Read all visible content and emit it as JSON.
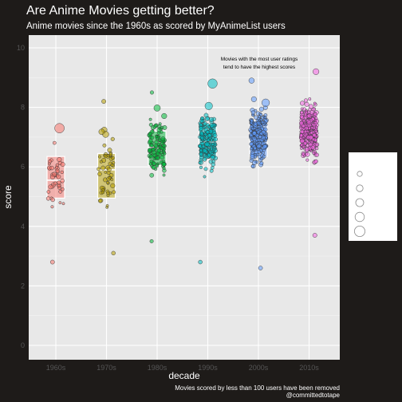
{
  "chart_data": {
    "type": "scatter",
    "title": "Are Anime Movies getting better?",
    "subtitle": "Anime movies since the 1960s as scored by MyAnimeList users",
    "xlabel": "decade",
    "ylabel": "score",
    "ylim": [
      0,
      10
    ],
    "yticks": [
      0,
      2,
      4,
      6,
      8,
      10
    ],
    "grid": true,
    "legend_placement": "right",
    "categories": [
      "1960s",
      "1970s",
      "1980s",
      "1990s",
      "2000s",
      "2010s"
    ],
    "colors": [
      "#f8766d",
      "#b79f00",
      "#00ba38",
      "#00bfc4",
      "#619cff",
      "#f564e3"
    ],
    "boxes": [
      {
        "q1": 4.95,
        "median": 5.55,
        "q3": 6.35
      },
      {
        "q1": 4.95,
        "median": 5.9,
        "q3": 6.45
      },
      {
        "q1": 6.05,
        "median": 6.65,
        "q3": 7.2
      },
      {
        "q1": 6.3,
        "median": 6.85,
        "q3": 7.45
      },
      {
        "q1": 6.35,
        "median": 7.0,
        "q3": 7.55
      },
      {
        "q1": 6.75,
        "median": 7.2,
        "q3": 7.8
      }
    ],
    "ranges": [
      {
        "min": 2.8,
        "max": 7.3
      },
      {
        "min": 3.1,
        "max": 8.2
      },
      {
        "min": 3.5,
        "max": 8.5
      },
      {
        "min": 2.8,
        "max": 8.8
      },
      {
        "min": 2.6,
        "max": 8.9
      },
      {
        "min": 3.7,
        "max": 9.2
      }
    ],
    "counts": [
      40,
      55,
      110,
      160,
      230,
      260
    ],
    "annotation": {
      "text_line1": "Movies with the most user ratings",
      "text_line2": "tend to have the highest scores"
    },
    "caption_line1": "Movies scored by less than 100 users have been removed",
    "caption_line2": "@committedtotape"
  },
  "legend": {
    "title": "",
    "items": [
      "",
      "",
      "",
      "",
      ""
    ]
  }
}
